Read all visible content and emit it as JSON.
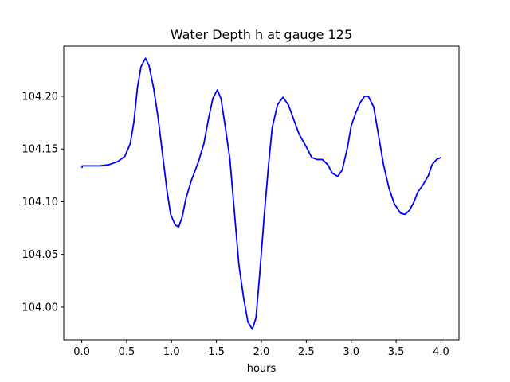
{
  "chart_data": {
    "type": "line",
    "title": "Water Depth h at gauge 125",
    "xlabel": "hours",
    "ylabel": "",
    "xlim": [
      -0.2,
      4.2
    ],
    "ylim": [
      103.969,
      104.2475
    ],
    "xticks": [
      0.0,
      0.5,
      1.0,
      1.5,
      2.0,
      2.5,
      3.0,
      3.5,
      4.0
    ],
    "xtick_labels": [
      "0.0",
      "0.5",
      "1.0",
      "1.5",
      "2.0",
      "2.5",
      "3.0",
      "3.5",
      "4.0"
    ],
    "yticks": [
      104.0,
      104.05,
      104.1,
      104.15,
      104.2
    ],
    "ytick_labels": [
      "104.00",
      "104.05",
      "104.10",
      "104.15",
      "104.20"
    ],
    "grid": false,
    "legend": "none",
    "series": [
      {
        "color": "#0000ff",
        "points": [
          [
            0.0,
            104.132
          ],
          [
            0.01,
            104.134
          ],
          [
            0.1,
            104.134
          ],
          [
            0.2,
            104.134
          ],
          [
            0.3,
            104.135
          ],
          [
            0.4,
            104.138
          ],
          [
            0.48,
            104.143
          ],
          [
            0.54,
            104.155
          ],
          [
            0.58,
            104.175
          ],
          [
            0.62,
            104.208
          ],
          [
            0.66,
            104.228
          ],
          [
            0.71,
            104.236
          ],
          [
            0.75,
            104.229
          ],
          [
            0.8,
            104.208
          ],
          [
            0.85,
            104.18
          ],
          [
            0.9,
            104.145
          ],
          [
            0.95,
            104.11
          ],
          [
            0.99,
            104.088
          ],
          [
            1.04,
            104.078
          ],
          [
            1.08,
            104.076
          ],
          [
            1.12,
            104.086
          ],
          [
            1.16,
            104.103
          ],
          [
            1.22,
            104.12
          ],
          [
            1.3,
            104.138
          ],
          [
            1.36,
            104.155
          ],
          [
            1.41,
            104.178
          ],
          [
            1.46,
            104.198
          ],
          [
            1.51,
            104.206
          ],
          [
            1.55,
            104.198
          ],
          [
            1.6,
            104.17
          ],
          [
            1.65,
            104.14
          ],
          [
            1.7,
            104.09
          ],
          [
            1.75,
            104.04
          ],
          [
            1.8,
            104.01
          ],
          [
            1.85,
            103.986
          ],
          [
            1.9,
            103.979
          ],
          [
            1.94,
            103.99
          ],
          [
            1.98,
            104.03
          ],
          [
            2.03,
            104.085
          ],
          [
            2.08,
            104.135
          ],
          [
            2.12,
            104.17
          ],
          [
            2.18,
            104.192
          ],
          [
            2.24,
            104.199
          ],
          [
            2.3,
            104.192
          ],
          [
            2.36,
            104.178
          ],
          [
            2.42,
            104.164
          ],
          [
            2.5,
            104.152
          ],
          [
            2.56,
            104.142
          ],
          [
            2.62,
            104.14
          ],
          [
            2.68,
            104.14
          ],
          [
            2.74,
            104.135
          ],
          [
            2.79,
            104.127
          ],
          [
            2.85,
            104.124
          ],
          [
            2.9,
            104.13
          ],
          [
            2.96,
            104.152
          ],
          [
            3.0,
            104.172
          ],
          [
            3.05,
            104.184
          ],
          [
            3.1,
            104.194
          ],
          [
            3.15,
            104.2
          ],
          [
            3.19,
            104.2
          ],
          [
            3.25,
            104.19
          ],
          [
            3.3,
            104.165
          ],
          [
            3.36,
            104.135
          ],
          [
            3.42,
            104.113
          ],
          [
            3.48,
            104.098
          ],
          [
            3.55,
            104.089
          ],
          [
            3.6,
            104.088
          ],
          [
            3.65,
            104.092
          ],
          [
            3.7,
            104.1
          ],
          [
            3.74,
            104.109
          ],
          [
            3.8,
            104.116
          ],
          [
            3.86,
            104.125
          ],
          [
            3.9,
            104.135
          ],
          [
            3.95,
            104.14
          ],
          [
            4.0,
            104.142
          ]
        ]
      }
    ]
  }
}
